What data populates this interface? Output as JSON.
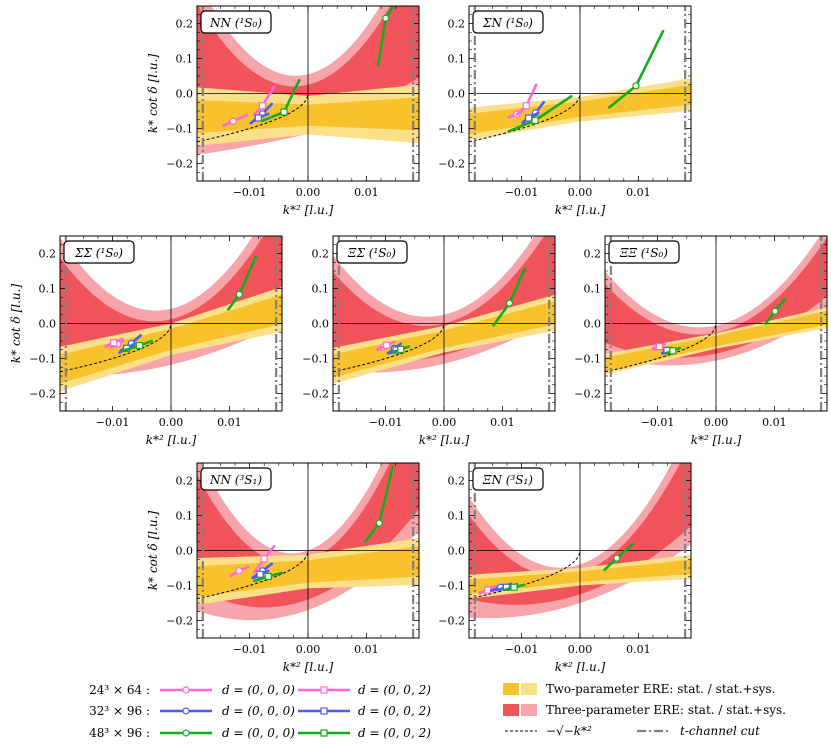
{
  "figure": {
    "xlabel": "k*² [l.u.]",
    "ylabel": "k* cot δ [l.u.]",
    "xticklabels": [
      "−0.01",
      "0.00",
      "0.01"
    ],
    "yticklabels": [
      "−0.2",
      "−0.1",
      "0.0",
      "0.1",
      "0.2"
    ]
  },
  "legend": {
    "ensembles": [
      "24³ × 64 :",
      "32³ × 96 :",
      "48³ × 96 :"
    ],
    "frames": [
      "d = (0, 0, 0)",
      "d = (0, 0, 2)"
    ],
    "ensemble_colors": [
      "#ff66e0",
      "#4a5cff",
      "#13ad1a"
    ],
    "two_param": "Two-parameter ERE: stat. / stat.+sys.",
    "three_param": "Three-parameter ERE: stat. / stat.+sys.",
    "sqrt_curve": "−√−k*²",
    "tchannel": "t-channel cut"
  },
  "chart_data": [
    {
      "type": "line",
      "title": "NN (¹S₀)",
      "xlim": [
        -0.019,
        0.019
      ],
      "ylim": [
        -0.25,
        0.25
      ],
      "tchannel_cut": 0.018,
      "two_param": {
        "intercept": -0.062,
        "slope": 0.2,
        "stat_half_width": 0.03,
        "sys_half_width": 0.055,
        "sys_slope_spread": 1.5
      },
      "three_param": {
        "c0": -0.03,
        "c1": 4.0,
        "c2": 500,
        "stat_half_width": 0.055,
        "sys_half_width": 0.085,
        "spread_x2": 350
      },
      "series": [
        {
          "ensemble": "24³ × 64",
          "frame": "d = (0, 0, 0)",
          "x": [
            -0.0145,
            -0.0105
          ],
          "y": [
            -0.092,
            -0.062
          ],
          "marker": [
            -0.0128,
            -0.079
          ]
        },
        {
          "ensemble": "24³ × 64",
          "frame": "d = (0, 0, 2)",
          "x": [
            -0.0092,
            -0.0058
          ],
          "y": [
            -0.06,
            0.02
          ],
          "marker": [
            -0.0078,
            -0.035
          ]
        },
        {
          "ensemble": "32³ × 96",
          "frame": "d = (0, 0, 0)",
          "x": [
            -0.0098,
            -0.0062
          ],
          "y": [
            -0.085,
            -0.03
          ],
          "marker": [
            -0.0078,
            -0.058
          ]
        },
        {
          "ensemble": "32³ × 96",
          "frame": "d = (0, 0, 2)",
          "x": [
            -0.0092,
            -0.0068
          ],
          "y": [
            -0.078,
            -0.058
          ],
          "marker": [
            -0.0085,
            -0.07
          ]
        },
        {
          "ensemble": "48³ × 96",
          "frame": "d = (0, 0, 0)",
          "x": [
            0.012,
            0.0146
          ],
          "y": [
            0.08,
            0.25
          ],
          "marker": [
            0.0133,
            0.215
          ]
        },
        {
          "ensemble": "48³ × 96",
          "frame": "d = (0, 0, 2)",
          "x": [
            -0.0078,
            -0.0015
          ],
          "y": [
            -0.078,
            0.038
          ],
          "marker": [
            -0.0041,
            -0.053
          ]
        }
      ]
    },
    {
      "type": "line",
      "title": "ΣN (¹S₀)",
      "xlim": [
        -0.019,
        0.019
      ],
      "ylim": [
        -0.25,
        0.25
      ],
      "tchannel_cut": 0.018,
      "two_param": {
        "intercept": -0.045,
        "slope": 2.2,
        "stat_half_width": 0.022,
        "sys_half_width": 0.035,
        "sys_slope_spread": 0.6
      },
      "series": [
        {
          "ensemble": "24³ × 64",
          "frame": "d = (0, 0, 0)",
          "x": [
            -0.0122,
            -0.0098
          ],
          "y": [
            -0.068,
            -0.048
          ],
          "marker": [
            -0.0108,
            -0.059
          ]
        },
        {
          "ensemble": "24³ × 64",
          "frame": "d = (0, 0, 2)",
          "x": [
            -0.0108,
            -0.0075
          ],
          "y": [
            -0.06,
            0.025
          ],
          "marker": [
            -0.0092,
            -0.035
          ]
        },
        {
          "ensemble": "32³ × 96",
          "frame": "d = (0, 0, 0)",
          "x": [
            -0.0098,
            -0.0062
          ],
          "y": [
            -0.085,
            -0.025
          ],
          "marker": [
            -0.0076,
            -0.055
          ]
        },
        {
          "ensemble": "32³ × 96",
          "frame": "d = (0, 0, 2)",
          "x": [
            -0.0098,
            -0.0072
          ],
          "y": [
            -0.082,
            -0.056
          ],
          "marker": [
            -0.0088,
            -0.07
          ]
        },
        {
          "ensemble": "48³ × 96",
          "frame": "d = (0, 0, 0)",
          "x": [
            0.005,
            0.0142
          ],
          "y": [
            -0.04,
            0.178
          ],
          "marker": [
            0.0096,
            0.022
          ]
        },
        {
          "ensemble": "48³ × 96",
          "frame": "d = (0, 0, 2)",
          "x": [
            -0.0122,
            -0.0015
          ],
          "y": [
            -0.108,
            -0.008
          ],
          "marker": [
            -0.0077,
            -0.077
          ]
        }
      ]
    },
    {
      "type": "line",
      "title": "ΣΣ (¹S₀)",
      "xlim": [
        -0.019,
        0.019
      ],
      "ylim": [
        -0.25,
        0.25
      ],
      "tchannel_cut": 0.018,
      "two_param": {
        "intercept": -0.045,
        "slope": 4.5,
        "stat_half_width": 0.03,
        "sys_half_width": 0.045,
        "sys_slope_spread": 1.0
      },
      "three_param": {
        "c0": -0.038,
        "c1": 4.0,
        "c2": 450,
        "stat_half_width": 0.05,
        "sys_half_width": 0.08,
        "spread_x2": 250
      },
      "series": [
        {
          "ensemble": "24³ × 64",
          "frame": "d = (0, 0, 0)",
          "x": [
            -0.0102,
            -0.0082
          ],
          "y": [
            -0.068,
            -0.05
          ],
          "marker": [
            -0.0091,
            -0.059
          ]
        },
        {
          "ensemble": "24³ × 64",
          "frame": "d = (0, 0, 2)",
          "x": [
            -0.0112,
            -0.0083
          ],
          "y": [
            -0.066,
            -0.044
          ],
          "marker": [
            -0.0098,
            -0.055
          ]
        },
        {
          "ensemble": "32³ × 96",
          "frame": "d = (0, 0, 0)",
          "x": [
            -0.0086,
            -0.0052
          ],
          "y": [
            -0.078,
            -0.034
          ],
          "marker": [
            -0.0068,
            -0.057
          ]
        },
        {
          "ensemble": "32³ × 96",
          "frame": "d = (0, 0, 2)",
          "x": [
            -0.0088,
            -0.0062
          ],
          "y": [
            -0.083,
            -0.058
          ],
          "marker": [
            -0.0076,
            -0.071
          ]
        },
        {
          "ensemble": "48³ × 96",
          "frame": "d = (0, 0, 0)",
          "x": [
            0.0098,
            0.0145
          ],
          "y": [
            0.04,
            0.19
          ],
          "marker": [
            0.0117,
            0.083
          ]
        },
        {
          "ensemble": "48³ × 96",
          "frame": "d = (0, 0, 2)",
          "x": [
            -0.0082,
            -0.0033
          ],
          "y": [
            -0.078,
            -0.05
          ],
          "marker": [
            -0.0054,
            -0.063
          ]
        }
      ]
    },
    {
      "type": "line",
      "title": "ΞΣ (¹S₀)",
      "xlim": [
        -0.019,
        0.019
      ],
      "ylim": [
        -0.25,
        0.25
      ],
      "tchannel_cut": 0.018,
      "two_param": {
        "intercept": -0.045,
        "slope": 4.0,
        "stat_half_width": 0.025,
        "sys_half_width": 0.038,
        "sys_slope_spread": 0.7
      },
      "three_param": {
        "c0": -0.045,
        "c1": 4.0,
        "c2": 420,
        "stat_half_width": 0.045,
        "sys_half_width": 0.07,
        "spread_x2": 200
      },
      "series": [
        {
          "ensemble": "24³ × 64",
          "frame": "d = (0, 0, 0)",
          "x": [
            -0.0114,
            -0.0094
          ],
          "y": [
            -0.075,
            -0.058
          ],
          "marker": [
            -0.0104,
            -0.067
          ]
        },
        {
          "ensemble": "24³ × 64",
          "frame": "d = (0, 0, 2)",
          "x": [
            -0.0112,
            -0.0085
          ],
          "y": [
            -0.072,
            -0.052
          ],
          "marker": [
            -0.0098,
            -0.062
          ]
        },
        {
          "ensemble": "32³ × 96",
          "frame": "d = (0, 0, 0)",
          "x": [
            -0.0096,
            -0.0074
          ],
          "y": [
            -0.085,
            -0.058
          ],
          "marker": [
            -0.0085,
            -0.071
          ]
        },
        {
          "ensemble": "32³ × 96",
          "frame": "d = (0, 0, 2)",
          "x": [
            -0.0092,
            -0.0072
          ],
          "y": [
            -0.085,
            -0.068
          ],
          "marker": [
            -0.0082,
            -0.076
          ]
        },
        {
          "ensemble": "48³ × 96",
          "frame": "d = (0, 0, 0)",
          "x": [
            0.0085,
            0.0138
          ],
          "y": [
            -0.005,
            0.155
          ],
          "marker": [
            0.0112,
            0.058
          ]
        },
        {
          "ensemble": "48³ × 96",
          "frame": "d = (0, 0, 2)",
          "x": [
            -0.0088,
            -0.006
          ],
          "y": [
            -0.082,
            -0.066
          ],
          "marker": [
            -0.0074,
            -0.074
          ]
        }
      ]
    },
    {
      "type": "line",
      "title": "ΞΞ (¹S₀)",
      "xlim": [
        -0.019,
        0.019
      ],
      "ylim": [
        -0.25,
        0.25
      ],
      "tchannel_cut": 0.018,
      "two_param": {
        "intercept": -0.05,
        "slope": 3.5,
        "stat_half_width": 0.015,
        "sys_half_width": 0.022,
        "sys_slope_spread": 0.4
      },
      "three_param": {
        "c0": -0.056,
        "c1": 3.5,
        "c2": 420,
        "stat_half_width": 0.03,
        "sys_half_width": 0.05,
        "spread_x2": 150
      },
      "series": [
        {
          "ensemble": "24³ × 64",
          "frame": "d = (0, 0, 0)",
          "x": [
            -0.0108,
            -0.0092
          ],
          "y": [
            -0.072,
            -0.06
          ],
          "marker": [
            -0.01,
            -0.066
          ]
        },
        {
          "ensemble": "24³ × 64",
          "frame": "d = (0, 0, 2)",
          "x": [
            -0.0106,
            -0.0088
          ],
          "y": [
            -0.074,
            -0.058
          ],
          "marker": [
            -0.0097,
            -0.066
          ]
        },
        {
          "ensemble": "32³ × 96",
          "frame": "d = (0, 0, 0)",
          "x": [
            -0.0092,
            -0.0078
          ],
          "y": [
            -0.086,
            -0.072
          ],
          "marker": [
            -0.0085,
            -0.079
          ]
        },
        {
          "ensemble": "32³ × 96",
          "frame": "d = (0, 0, 2)",
          "x": [
            -0.0092,
            -0.0076
          ],
          "y": [
            -0.084,
            -0.07
          ],
          "marker": [
            -0.0084,
            -0.077
          ]
        },
        {
          "ensemble": "48³ × 96",
          "frame": "d = (0, 0, 0)",
          "x": [
            0.0085,
            0.0118
          ],
          "y": [
            0.0,
            0.07
          ],
          "marker": [
            0.0101,
            0.035
          ]
        },
        {
          "ensemble": "48³ × 96",
          "frame": "d = (0, 0, 2)",
          "x": [
            -0.0086,
            -0.0062
          ],
          "y": [
            -0.085,
            -0.07
          ],
          "marker": [
            -0.0074,
            -0.078
          ]
        }
      ]
    },
    {
      "type": "line",
      "title": "NN (³S₁)",
      "xlim": [
        -0.019,
        0.019
      ],
      "ylim": [
        -0.25,
        0.25
      ],
      "tchannel_cut": 0.018,
      "two_param": {
        "intercept": -0.06,
        "slope": 1.5,
        "stat_half_width": 0.032,
        "sys_half_width": 0.048,
        "sys_slope_spread": 1.0
      },
      "three_param": {
        "c0": -0.085,
        "c1": 6.0,
        "c2": 700,
        "stat_half_width": 0.055,
        "sys_half_width": 0.085,
        "spread_x2": 300
      },
      "series": [
        {
          "ensemble": "24³ × 64",
          "frame": "d = (0, 0, 0)",
          "x": [
            -0.0132,
            -0.0102
          ],
          "y": [
            -0.072,
            -0.046
          ],
          "marker": [
            -0.0118,
            -0.058
          ]
        },
        {
          "ensemble": "24³ × 64",
          "frame": "d = (0, 0, 2)",
          "x": [
            -0.0092,
            -0.0058
          ],
          "y": [
            -0.062,
            0.012
          ],
          "marker": [
            -0.0075,
            -0.024
          ]
        },
        {
          "ensemble": "32³ × 96",
          "frame": "d = (0, 0, 0)",
          "x": [
            -0.0095,
            -0.0062
          ],
          "y": [
            -0.078,
            -0.038
          ],
          "marker": [
            -0.0078,
            -0.058
          ]
        },
        {
          "ensemble": "32³ × 96",
          "frame": "d = (0, 0, 2)",
          "x": [
            -0.0092,
            -0.0068
          ],
          "y": [
            -0.078,
            -0.058
          ],
          "marker": [
            -0.0082,
            -0.068
          ]
        },
        {
          "ensemble": "48³ × 96",
          "frame": "d = (0, 0, 0)",
          "x": [
            0.0098,
            0.0145
          ],
          "y": [
            0.025,
            0.24
          ],
          "marker": [
            0.0122,
            0.078
          ]
        },
        {
          "ensemble": "48³ × 96",
          "frame": "d = (0, 0, 2)",
          "x": [
            -0.0092,
            -0.0045
          ],
          "y": [
            -0.087,
            -0.064
          ],
          "marker": [
            -0.0068,
            -0.074
          ]
        }
      ]
    },
    {
      "type": "line",
      "title": "ΞN (³S₁)",
      "xlim": [
        -0.019,
        0.019
      ],
      "ylim": [
        -0.25,
        0.25
      ],
      "tchannel_cut": 0.018,
      "two_param": {
        "intercept": -0.075,
        "slope": 1.5,
        "stat_half_width": 0.015,
        "sys_half_width": 0.025,
        "sys_slope_spread": 0.5
      },
      "three_param": {
        "c0": -0.095,
        "c1": 5.5,
        "c2": 500,
        "stat_half_width": 0.03,
        "sys_half_width": 0.055,
        "spread_x2": 250
      },
      "series": [
        {
          "ensemble": "24³ × 64",
          "frame": "d = (0, 0, 0)",
          "x": [
            -0.016,
            -0.0135
          ],
          "y": [
            -0.118,
            -0.1
          ],
          "marker": [
            -0.0148,
            -0.109
          ]
        },
        {
          "ensemble": "24³ × 64",
          "frame": "d = (0, 0, 2)",
          "x": [
            -0.0172,
            -0.0142
          ],
          "y": [
            -0.122,
            -0.102
          ],
          "marker": [
            -0.0158,
            -0.113
          ]
        },
        {
          "ensemble": "32³ × 96",
          "frame": "d = (0, 0, 0)",
          "x": [
            -0.0152,
            -0.0118
          ],
          "y": [
            -0.115,
            -0.095
          ],
          "marker": [
            -0.0136,
            -0.105
          ]
        },
        {
          "ensemble": "32³ × 96",
          "frame": "d = (0, 0, 2)",
          "x": [
            -0.0142,
            -0.0108
          ],
          "y": [
            -0.113,
            -0.096
          ],
          "marker": [
            -0.0126,
            -0.105
          ]
        },
        {
          "ensemble": "48³ × 96",
          "frame": "d = (0, 0, 0)",
          "x": [
            0.0042,
            0.009
          ],
          "y": [
            -0.055,
            0.018
          ],
          "marker": [
            0.0063,
            -0.022
          ]
        },
        {
          "ensemble": "48³ × 96",
          "frame": "d = (0, 0, 2)",
          "x": [
            -0.0128,
            -0.0095
          ],
          "y": [
            -0.112,
            -0.098
          ],
          "marker": [
            -0.0113,
            -0.105
          ]
        }
      ]
    }
  ]
}
